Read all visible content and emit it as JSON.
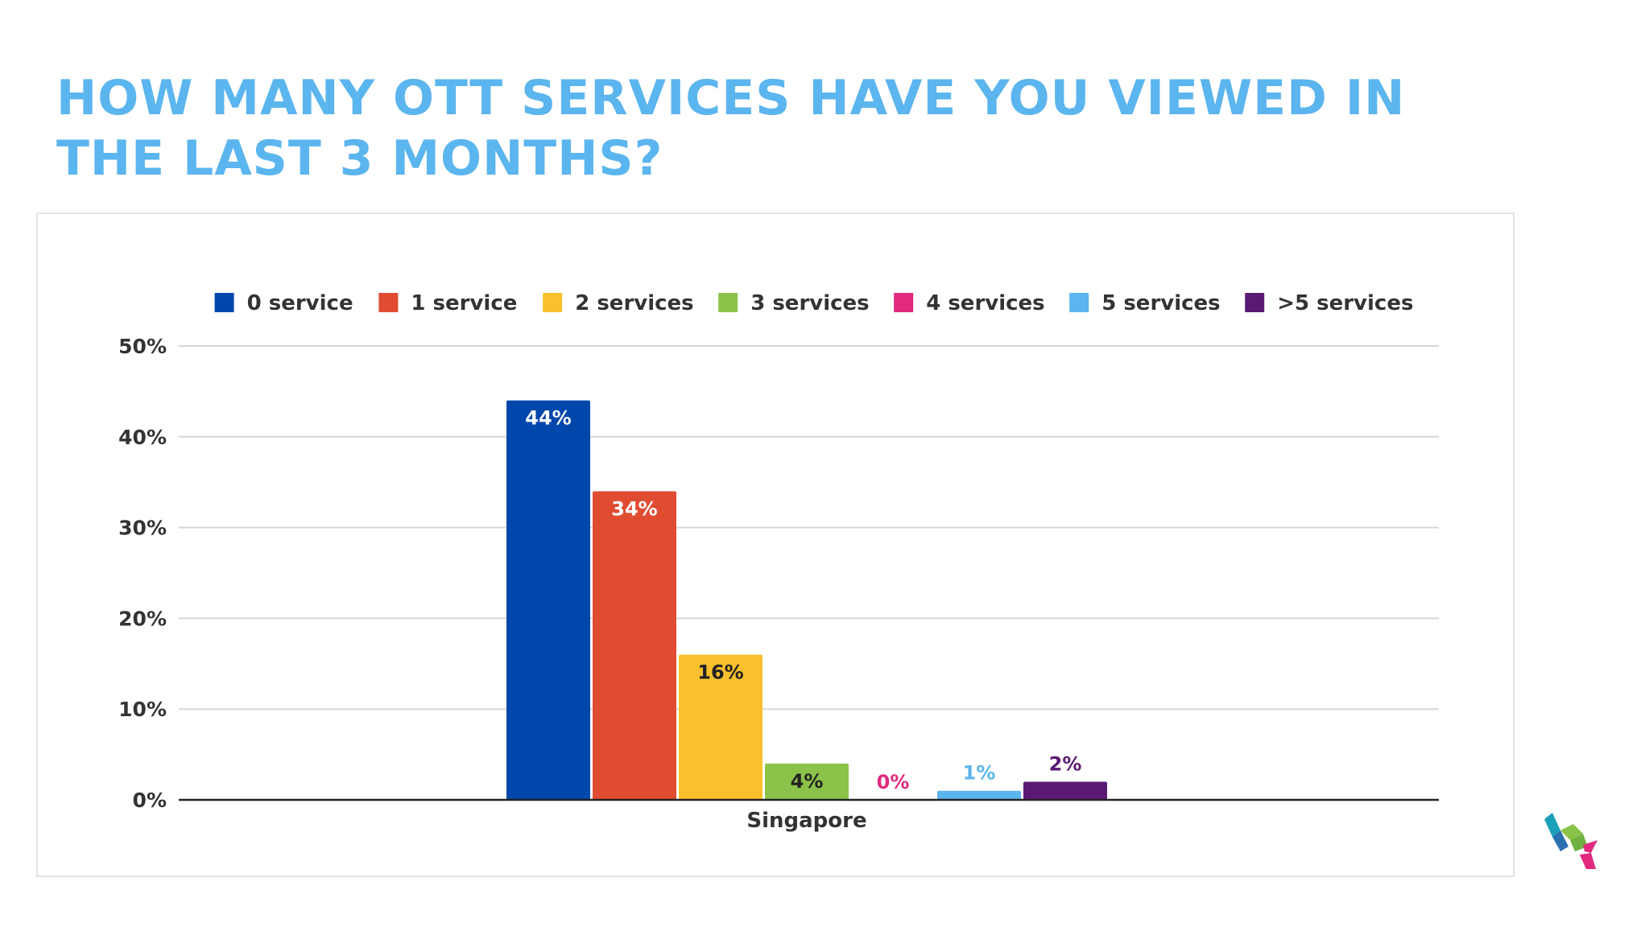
{
  "slide": {
    "title": "HOW MANY OTT SERVICES HAVE YOU VIEWED IN THE LAST 3 MONTHS?"
  },
  "chart_data": {
    "type": "bar",
    "categories": [
      "Singapore"
    ],
    "series": [
      {
        "name": "0 service",
        "values": [
          44
        ],
        "label": "44%",
        "color": "#0047ab",
        "label_color": "#ffffff",
        "label_pos": "inside"
      },
      {
        "name": "1 service",
        "values": [
          34
        ],
        "label": "34%",
        "color": "#e04c32",
        "label_color": "#ffffff",
        "label_pos": "inside"
      },
      {
        "name": "2 services",
        "values": [
          16
        ],
        "label": "16%",
        "color": "#fbc02d",
        "label_color": "#222222",
        "label_pos": "inside"
      },
      {
        "name": "3 services",
        "values": [
          4
        ],
        "label": "4%",
        "color": "#8bc34a",
        "label_color": "#222222",
        "label_pos": "inside"
      },
      {
        "name": "4 services",
        "values": [
          0
        ],
        "label": "0%",
        "color": "#e0297f",
        "label_color": "#e0297f",
        "label_pos": "above"
      },
      {
        "name": "5 services",
        "values": [
          1
        ],
        "label": "1%",
        "color": "#5bb5ee",
        "label_color": "#5bb5ee",
        "label_pos": "above"
      },
      {
        "name": ">5 services",
        "values": [
          2
        ],
        "label": "2%",
        "color": "#5b1a72",
        "label_color": "#5b1a72",
        "label_pos": "above"
      }
    ],
    "y_ticks": [
      "0%",
      "10%",
      "20%",
      "30%",
      "40%",
      "50%"
    ],
    "ylim": [
      0,
      50
    ],
    "xlabel": "",
    "ylabel": "",
    "grid": true,
    "legend_position": "top"
  }
}
